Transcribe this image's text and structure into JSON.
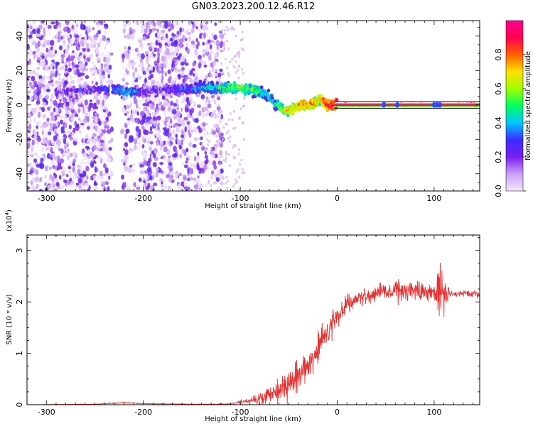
{
  "title": "GN03.2023.200.12.46.R12",
  "chart_data": [
    {
      "type": "heatmap",
      "xlabel": "Height of straight line (km)",
      "ylabel": "Frequency (Hz)",
      "xlim": [
        -320,
        147
      ],
      "ylim": [
        -50,
        49
      ],
      "xticks": [
        -300,
        -200,
        -100,
        0,
        100
      ],
      "yticks": [
        -40,
        -20,
        0,
        20,
        40
      ],
      "colorbar": {
        "label": "Normalized spectral amplitude",
        "range": [
          0.0,
          1.0
        ],
        "ticks": [
          0.0,
          0.2,
          0.4,
          0.6,
          0.8
        ],
        "colors": [
          "#f2e8fb",
          "#c9a0f5",
          "#7a1ef0",
          "#3b2cff",
          "#00c8ff",
          "#00ff60",
          "#a0ff00",
          "#ffe000",
          "#ff6000",
          "#ff0050",
          "#ff0090"
        ]
      },
      "ridge": {
        "x": [
          -280,
          -250,
          -230,
          -215,
          -200,
          -180,
          -160,
          -140,
          -120,
          -100,
          -90,
          -80,
          -72,
          -65,
          -58,
          -52,
          -45,
          -38,
          -30,
          -22,
          -18,
          -14,
          -10,
          0,
          50,
          100,
          147
        ],
        "freq": [
          8,
          9,
          9,
          8,
          8,
          9,
          9,
          10,
          10,
          10,
          9,
          8,
          6,
          1,
          -2,
          -4,
          -2,
          0,
          0,
          1,
          4,
          2,
          0,
          0,
          0,
          0,
          0
        ],
        "amplitude": [
          0.2,
          0.25,
          0.35,
          0.45,
          0.25,
          0.25,
          0.3,
          0.4,
          0.5,
          0.55,
          0.55,
          0.5,
          0.45,
          0.45,
          0.55,
          0.7,
          0.7,
          0.75,
          0.8,
          0.75,
          0.7,
          0.8,
          0.9,
          0.95,
          0.95,
          0.95,
          0.95
        ]
      }
    },
    {
      "type": "line",
      "xlabel": "Height of straight line (km)",
      "ylabel": "SNR (10 * v/v)",
      "y_multiplier": "(x10^4)",
      "xlim": [
        -320,
        147
      ],
      "ylim": [
        0,
        3.3
      ],
      "xticks": [
        -300,
        -200,
        -100,
        0,
        100
      ],
      "yticks": [
        0,
        1,
        2,
        3
      ],
      "color": "#e83030",
      "envelope": {
        "x": [
          -320,
          -250,
          -220,
          -200,
          -150,
          -120,
          -110,
          -100,
          -90,
          -80,
          -70,
          -60,
          -50,
          -40,
          -30,
          -20,
          -10,
          0,
          10,
          20,
          30,
          40,
          50,
          60,
          70,
          80,
          90,
          100,
          105,
          108,
          112,
          120,
          130,
          147
        ],
        "mean": [
          0.0,
          0.01,
          0.04,
          0.02,
          0.01,
          0.01,
          0.02,
          0.05,
          0.08,
          0.12,
          0.2,
          0.3,
          0.4,
          0.55,
          0.8,
          1.1,
          1.45,
          1.75,
          1.95,
          2.05,
          2.12,
          2.18,
          2.2,
          2.2,
          2.25,
          2.22,
          2.2,
          2.2,
          2.1,
          2.3,
          2.15,
          2.15,
          2.18,
          2.15
        ],
        "spread": [
          0.0,
          0.01,
          0.02,
          0.01,
          0.01,
          0.01,
          0.03,
          0.05,
          0.08,
          0.15,
          0.25,
          0.35,
          0.4,
          0.45,
          0.45,
          0.45,
          0.4,
          0.35,
          0.3,
          0.2,
          0.18,
          0.2,
          0.25,
          0.3,
          0.35,
          0.3,
          0.25,
          0.2,
          0.9,
          1.0,
          0.3,
          0.08,
          0.08,
          0.08
        ]
      }
    }
  ]
}
